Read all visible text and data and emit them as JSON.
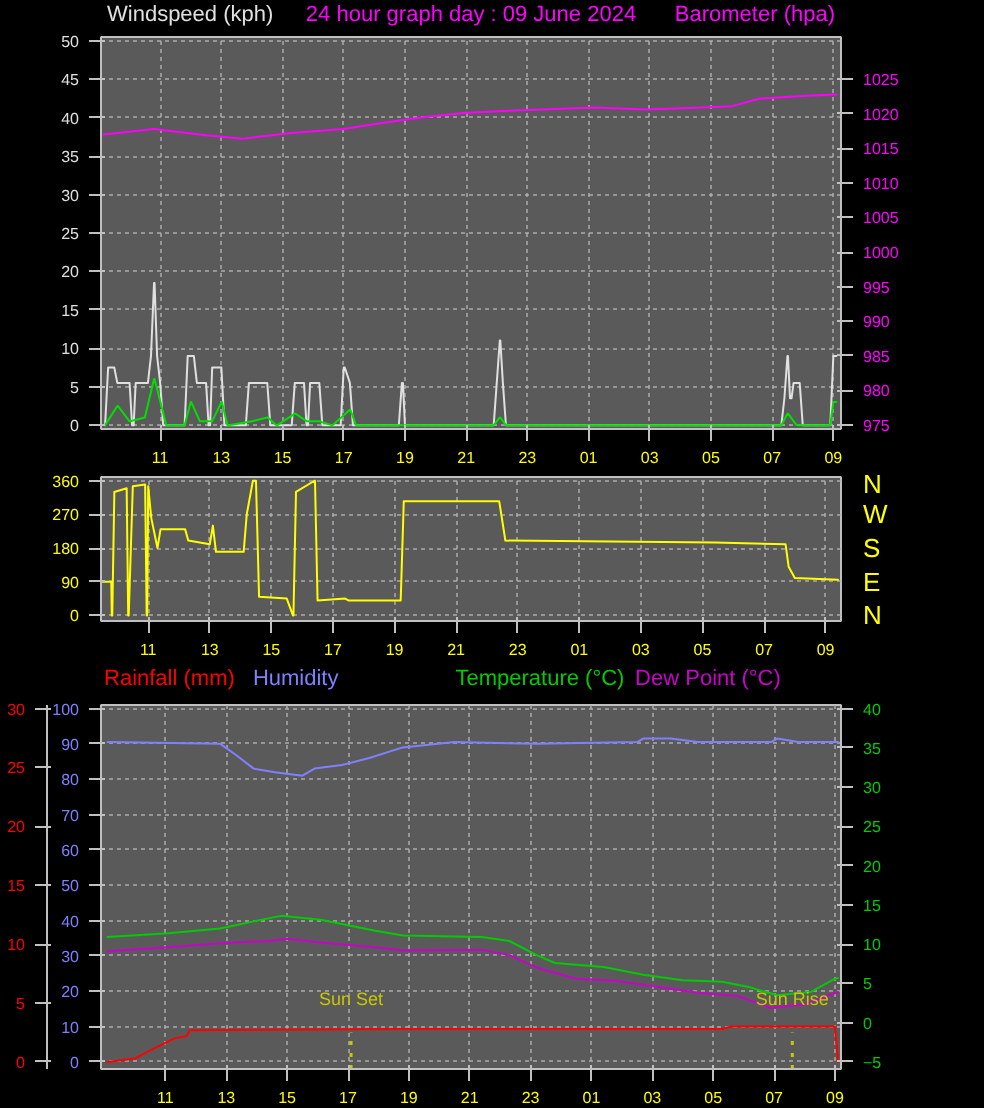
{
  "chart_data": [
    {
      "type": "line",
      "title": "24 hour graph day : 09 June 2024",
      "ylabel": "Windspeed (kph)",
      "y2label": "Barometer (hpa)",
      "xlim": [
        "2024-06-08T09:04",
        "2024-06-09T09:15"
      ],
      "xticks": [
        {
          "value": "2024-06-08T11:00",
          "label": "11"
        },
        {
          "value": "2024-06-08T13:00",
          "label": "13"
        },
        {
          "value": "2024-06-08T15:00",
          "label": "15"
        },
        {
          "value": "2024-06-08T17:00",
          "label": "17"
        },
        {
          "value": "2024-06-08T19:00",
          "label": "19"
        },
        {
          "value": "2024-06-08T21:00",
          "label": "21"
        },
        {
          "value": "2024-06-08T23:00",
          "label": "23"
        },
        {
          "value": "2024-06-09T01:00",
          "label": "01"
        },
        {
          "value": "2024-06-09T03:00",
          "label": "03"
        },
        {
          "value": "2024-06-09T05:00",
          "label": "05"
        },
        {
          "value": "2024-06-09T07:00",
          "label": "07"
        },
        {
          "value": "2024-06-09T09:00",
          "label": "09"
        }
      ],
      "ylim": [
        -0.5,
        50.5
      ],
      "yticks": [
        0,
        5,
        10,
        15,
        20,
        25,
        30,
        35,
        40,
        45,
        50
      ],
      "y2lim": [
        974.4,
        1031.1
      ],
      "y2ticks": [
        975,
        980,
        985,
        990,
        995,
        1000,
        1005,
        1010,
        1015,
        1020,
        1025
      ],
      "grid": true,
      "marker": "none",
      "line_style": "solid",
      "series": [
        {
          "color": "#e0e0e0",
          "x": [
            "2024-06-08T09:12",
            "2024-06-08T09:18",
            "2024-06-08T09:30",
            "2024-06-08T09:36",
            "2024-06-08T10:00",
            "2024-06-08T10:05",
            "2024-06-08T10:08",
            "2024-06-08T10:12",
            "2024-06-08T10:36",
            "2024-06-08T10:42",
            "2024-06-08T10:48",
            "2024-06-08T10:49",
            "2024-06-08T10:54",
            "2024-06-08T11:00",
            "2024-06-08T11:06",
            "2024-06-08T11:48",
            "2024-06-08T11:54",
            "2024-06-08T12:06",
            "2024-06-08T12:12",
            "2024-06-08T12:30",
            "2024-06-08T12:35",
            "2024-06-08T12:38",
            "2024-06-08T12:42",
            "2024-06-08T13:00",
            "2024-06-08T13:06",
            "2024-06-08T13:48",
            "2024-06-08T13:54",
            "2024-06-08T14:30",
            "2024-06-08T14:36",
            "2024-06-08T15:18",
            "2024-06-08T15:24",
            "2024-06-08T15:42",
            "2024-06-08T15:47",
            "2024-06-08T15:50",
            "2024-06-08T15:54",
            "2024-06-08T16:12",
            "2024-06-08T16:18",
            "2024-06-08T16:54",
            "2024-06-08T17:00",
            "2024-06-08T17:02",
            "2024-06-08T17:12",
            "2024-06-08T17:18",
            "2024-06-08T18:48",
            "2024-06-08T18:54",
            "2024-06-08T18:56",
            "2024-06-08T19:00",
            "2024-06-08T21:54",
            "2024-06-08T22:00",
            "2024-06-08T22:06",
            "2024-06-08T22:07",
            "2024-06-08T22:12",
            "2024-06-08T22:18",
            "2024-06-09T07:18",
            "2024-06-09T07:24",
            "2024-06-09T07:30",
            "2024-06-09T07:31",
            "2024-06-09T07:35",
            "2024-06-09T07:38",
            "2024-06-09T07:42",
            "2024-06-09T07:54",
            "2024-06-09T08:00",
            "2024-06-09T08:54",
            "2024-06-09T09:00",
            "2024-06-09T09:06"
          ],
          "values": [
            0,
            7.5,
            7.5,
            5.5,
            5.5,
            0,
            0,
            5.5,
            5.5,
            9,
            18.5,
            18.5,
            9,
            5.5,
            0,
            0,
            9,
            9,
            5.5,
            5.5,
            0,
            0,
            7.5,
            7.5,
            0,
            0,
            5.5,
            5.5,
            0,
            0,
            5.5,
            5.5,
            0,
            0,
            5.5,
            5.5,
            0,
            0,
            7.5,
            7.5,
            5.5,
            0,
            0,
            5.5,
            5.5,
            0,
            0,
            5.5,
            11,
            11,
            5.5,
            0,
            0,
            3.5,
            9,
            9,
            3.5,
            3.5,
            5.5,
            5.5,
            0,
            0,
            9,
            9
          ]
        },
        {
          "color": "#00e000",
          "x": [
            "2024-06-08T09:12",
            "2024-06-08T09:36",
            "2024-06-08T09:37",
            "2024-06-08T10:00",
            "2024-06-08T10:01",
            "2024-06-08T10:30",
            "2024-06-08T10:48",
            "2024-06-08T10:49",
            "2024-06-08T11:12",
            "2024-06-08T11:48",
            "2024-06-08T12:00",
            "2024-06-08T12:01",
            "2024-06-08T12:18",
            "2024-06-08T12:42",
            "2024-06-08T13:00",
            "2024-06-08T13:01",
            "2024-06-08T13:12",
            "2024-06-08T13:14",
            "2024-06-08T14:00",
            "2024-06-08T14:30",
            "2024-06-08T14:31",
            "2024-06-08T14:48",
            "2024-06-08T14:50",
            "2024-06-08T15:24",
            "2024-06-08T15:25",
            "2024-06-08T15:48",
            "2024-06-08T16:12",
            "2024-06-08T16:36",
            "2024-06-08T16:38",
            "2024-06-08T17:12",
            "2024-06-08T17:13",
            "2024-06-08T17:24",
            "2024-06-08T21:54",
            "2024-06-08T22:06",
            "2024-06-08T22:07",
            "2024-06-08T22:18",
            "2024-06-09T07:18",
            "2024-06-09T07:30",
            "2024-06-09T07:31",
            "2024-06-09T07:48",
            "2024-06-09T08:54",
            "2024-06-09T09:00",
            "2024-06-09T09:06"
          ],
          "values": [
            0,
            2.5,
            2.5,
            0.5,
            0.5,
            1,
            6,
            6,
            0,
            0,
            3,
            3,
            0.5,
            0.5,
            3,
            3,
            0,
            0,
            0.5,
            1,
            1,
            0,
            0,
            1.5,
            1.5,
            0.5,
            0.5,
            0,
            0,
            2,
            2,
            0,
            0,
            1,
            1,
            0,
            0,
            1.5,
            1.5,
            0,
            0,
            3,
            3
          ]
        },
        {
          "color": "#ff00ff",
          "axis": "y2",
          "x": [
            "2024-06-08T09:09",
            "2024-06-08T10:48",
            "2024-06-08T12:30",
            "2024-06-08T13:42",
            "2024-06-08T15:18",
            "2024-06-08T17:00",
            "2024-06-08T18:18",
            "2024-06-08T19:36",
            "2024-06-08T20:54",
            "2024-06-08T22:12",
            "2024-06-08T23:30",
            "2024-06-09T01:12",
            "2024-06-09T02:54",
            "2024-06-09T04:42",
            "2024-06-09T05:42",
            "2024-06-09T06:36",
            "2024-06-09T08:06",
            "2024-06-09T09:06"
          ],
          "values": [
            1017.0,
            1017.8,
            1016.9,
            1016.4,
            1017.2,
            1017.8,
            1018.7,
            1019.5,
            1020.1,
            1020.4,
            1020.6,
            1020.9,
            1020.6,
            1020.9,
            1021.1,
            1022.2,
            1022.6,
            1022.8
          ]
        }
      ]
    },
    {
      "type": "line",
      "xlim": [
        "2024-06-08T09:28",
        "2024-06-09T09:30"
      ],
      "xticks": [
        {
          "value": "2024-06-08T11:00",
          "label": "11"
        },
        {
          "value": "2024-06-08T13:00",
          "label": "13"
        },
        {
          "value": "2024-06-08T15:00",
          "label": "15"
        },
        {
          "value": "2024-06-08T17:00",
          "label": "17"
        },
        {
          "value": "2024-06-08T19:00",
          "label": "19"
        },
        {
          "value": "2024-06-08T21:00",
          "label": "21"
        },
        {
          "value": "2024-06-08T23:00",
          "label": "23"
        },
        {
          "value": "2024-06-09T01:00",
          "label": "01"
        },
        {
          "value": "2024-06-09T03:00",
          "label": "03"
        },
        {
          "value": "2024-06-09T05:00",
          "label": "05"
        },
        {
          "value": "2024-06-09T07:00",
          "label": "07"
        },
        {
          "value": "2024-06-09T09:00",
          "label": "09"
        }
      ],
      "ylim": [
        -15,
        370
      ],
      "yticks": [
        0,
        90,
        180,
        270,
        360
      ],
      "annotations": [
        "N",
        "W",
        "S",
        "E",
        "N"
      ],
      "grid": true,
      "marker": "none",
      "line_style": "solid",
      "series": [
        {
          "color": "#ffff00",
          "x": [
            "2024-06-08T09:30",
            "2024-06-08T09:48",
            "2024-06-08T09:49",
            "2024-06-08T09:50",
            "2024-06-08T09:54",
            "2024-06-08T10:18",
            "2024-06-08T10:21",
            "2024-06-08T10:22",
            "2024-06-08T10:30",
            "2024-06-08T10:54",
            "2024-06-08T10:57",
            "2024-06-08T10:58",
            "2024-06-08T11:00",
            "2024-06-08T11:06",
            "2024-06-08T11:18",
            "2024-06-08T11:24",
            "2024-06-08T12:12",
            "2024-06-08T12:18",
            "2024-06-08T13:00",
            "2024-06-08T13:06",
            "2024-06-08T13:12",
            "2024-06-08T14:06",
            "2024-06-08T14:12",
            "2024-06-08T14:24",
            "2024-06-08T14:30",
            "2024-06-08T14:36",
            "2024-06-08T15:30",
            "2024-06-08T15:42",
            "2024-06-08T15:43",
            "2024-06-08T15:48",
            "2024-06-08T16:12",
            "2024-06-08T16:24",
            "2024-06-08T16:25",
            "2024-06-08T16:30",
            "2024-06-08T17:24",
            "2024-06-08T17:30",
            "2024-06-08T19:12",
            "2024-06-08T19:18",
            "2024-06-08T22:24",
            "2024-06-08T22:36",
            "2024-06-09T05:24",
            "2024-06-09T07:42",
            "2024-06-09T07:48",
            "2024-06-09T08:00",
            "2024-06-09T09:24"
          ],
          "values": [
            90,
            90,
            0,
            0,
            330,
            340,
            0,
            0,
            345,
            350,
            0,
            0,
            345,
            260,
            180,
            230,
            230,
            200,
            190,
            240,
            170,
            170,
            270,
            360,
            360,
            50,
            45,
            0,
            0,
            330,
            350,
            360,
            360,
            40,
            45,
            40,
            40,
            305,
            305,
            200,
            195,
            190,
            130,
            100,
            95
          ]
        }
      ]
    },
    {
      "type": "line",
      "xlim": [
        "2024-06-08T08:53",
        "2024-06-09T09:12"
      ],
      "xticks": [
        {
          "value": "2024-06-08T11:00",
          "label": "11"
        },
        {
          "value": "2024-06-08T13:00",
          "label": "13"
        },
        {
          "value": "2024-06-08T15:00",
          "label": "15"
        },
        {
          "value": "2024-06-08T17:00",
          "label": "17"
        },
        {
          "value": "2024-06-08T19:00",
          "label": "19"
        },
        {
          "value": "2024-06-08T21:00",
          "label": "21"
        },
        {
          "value": "2024-06-08T23:00",
          "label": "23"
        },
        {
          "value": "2024-06-09T01:00",
          "label": "01"
        },
        {
          "value": "2024-06-09T03:00",
          "label": "03"
        },
        {
          "value": "2024-06-09T05:00",
          "label": "05"
        },
        {
          "value": "2024-06-09T07:00",
          "label": "07"
        },
        {
          "value": "2024-06-09T09:00",
          "label": "09"
        }
      ],
      "ylim": [
        -2,
        101
      ],
      "yticks": [
        0,
        10,
        20,
        30,
        40,
        50,
        60,
        70,
        80,
        90,
        100
      ],
      "y2lim": [
        -0.6,
        30.3
      ],
      "y2ticks": [
        0,
        5,
        10,
        15,
        20,
        25,
        30
      ],
      "y3lim": [
        -5.9,
        40.45
      ],
      "y3ticks": [
        -5,
        0,
        5,
        10,
        15,
        20,
        25,
        30,
        35,
        40
      ],
      "grid": true,
      "marker": "none",
      "line_style": "solid",
      "ref_lines": [
        {
          "axis": "x",
          "value": "2024-06-08T17:06",
          "label": "Sun Set",
          "color": "#c8c800",
          "line_style": "dotted"
        },
        {
          "axis": "x",
          "value": "2024-06-09T07:36",
          "label": "Sun Rise",
          "color": "#c8c800",
          "line_style": "dotted"
        }
      ],
      "series": [
        {
          "name": "Rainfall (mm)",
          "color": "#ff0000",
          "axis": "y2",
          "x": [
            "2024-06-08T09:06",
            "2024-06-08T10:00",
            "2024-06-08T10:36",
            "2024-06-08T11:18",
            "2024-06-08T11:42",
            "2024-06-08T11:48",
            "2024-06-08T18:48",
            "2024-06-09T05:18",
            "2024-06-09T05:36",
            "2024-06-09T09:00",
            "2024-06-09T09:06"
          ],
          "values": [
            0,
            0.3,
            1.1,
            2,
            2.2,
            2.7,
            2.8,
            2.8,
            3.0,
            3.0,
            0
          ]
        },
        {
          "name": "Humidity",
          "color": "#8080ff",
          "x": [
            "2024-06-08T09:06",
            "2024-06-08T12:48",
            "2024-06-08T13:18",
            "2024-06-08T13:54",
            "2024-06-08T14:36",
            "2024-06-08T15:30",
            "2024-06-08T15:54",
            "2024-06-08T16:48",
            "2024-06-08T17:42",
            "2024-06-08T18:48",
            "2024-06-08T20:30",
            "2024-06-08T23:12",
            "2024-06-09T02:30",
            "2024-06-09T02:42",
            "2024-06-09T03:36",
            "2024-06-09T04:30",
            "2024-06-09T06:54",
            "2024-06-09T07:06",
            "2024-06-09T07:48",
            "2024-06-09T09:06"
          ],
          "values": [
            90.5,
            90,
            87,
            83,
            82,
            81,
            83,
            84,
            86,
            89,
            90.5,
            90,
            90.5,
            91.5,
            91.5,
            90.5,
            90.5,
            91.5,
            90.5,
            90.5
          ]
        },
        {
          "name": "Temperature (°C)",
          "color": "#00cc00",
          "axis": "y3",
          "x": [
            "2024-06-08T09:06",
            "2024-06-08T11:06",
            "2024-06-08T12:48",
            "2024-06-08T13:54",
            "2024-06-08T14:48",
            "2024-06-08T16:06",
            "2024-06-08T17:54",
            "2024-06-08T18:48",
            "2024-06-08T21:24",
            "2024-06-08T22:18",
            "2024-06-08T23:12",
            "2024-06-08T23:48",
            "2024-06-09T01:24",
            "2024-06-09T02:42",
            "2024-06-09T04:00",
            "2024-06-09T05:18",
            "2024-06-09T06:12",
            "2024-06-09T07:06",
            "2024-06-09T08:12",
            "2024-06-09T08:54",
            "2024-06-09T09:06"
          ],
          "values": [
            10.9,
            11.4,
            12.0,
            12.9,
            13.6,
            13.1,
            11.7,
            11.1,
            10.9,
            10.4,
            8.6,
            7.6,
            7.1,
            6.1,
            5.4,
            5.2,
            4.5,
            3.5,
            3.9,
            5.4,
            5.7
          ]
        },
        {
          "name": "Dew Point (°C)",
          "color": "#cc00cc",
          "axis": "y3",
          "x": [
            "2024-06-08T09:06",
            "2024-06-08T11:06",
            "2024-06-08T12:48",
            "2024-06-08T14:24",
            "2024-06-08T15:00",
            "2024-06-08T16:06",
            "2024-06-08T17:54",
            "2024-06-08T18:48",
            "2024-06-08T21:24",
            "2024-06-08T22:18",
            "2024-06-08T23:12",
            "2024-06-09T00:30",
            "2024-06-09T01:48",
            "2024-06-09T03:06",
            "2024-06-09T04:30",
            "2024-06-09T05:48",
            "2024-06-09T06:54",
            "2024-06-09T08:00",
            "2024-06-09T09:06"
          ],
          "values": [
            9.1,
            9.6,
            10.1,
            10.4,
            10.7,
            10.2,
            9.6,
            9.2,
            9.3,
            8.6,
            7.0,
            5.6,
            5.3,
            4.6,
            3.8,
            3.4,
            1.9,
            2.3,
            3.9
          ]
        }
      ]
    }
  ]
}
